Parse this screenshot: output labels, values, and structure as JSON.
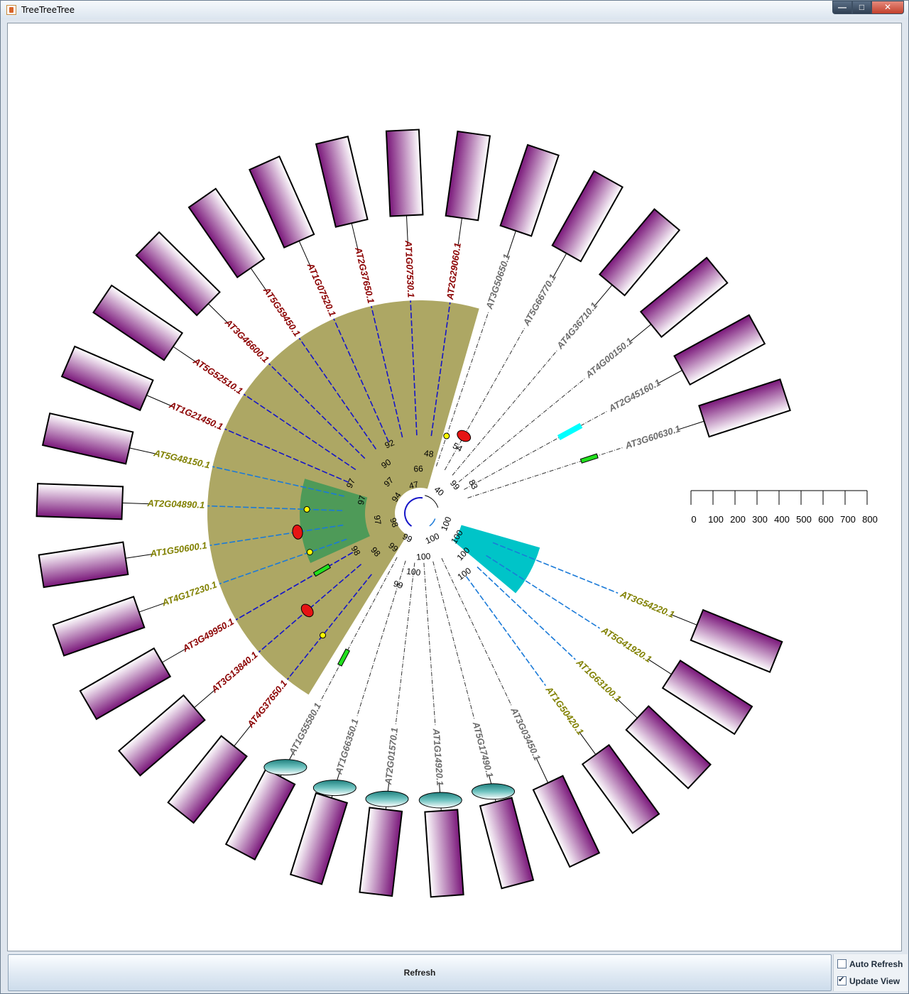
{
  "window": {
    "title": "TreeTreeTree"
  },
  "tree": {
    "leaves": [
      {
        "label": "AT3G54220.1",
        "color": "#808000",
        "edge": "dashed-blue"
      },
      {
        "label": "AT5G41920.1",
        "color": "#808000",
        "edge": "dashed-blue"
      },
      {
        "label": "AT1G63100.1",
        "color": "#808000",
        "edge": "dashed-blue"
      },
      {
        "label": "AT1G50420.1",
        "color": "#808000",
        "edge": "dashed-blue"
      },
      {
        "label": "AT3G03450.1",
        "color": "#6b6b6b",
        "edge": "dashdot"
      },
      {
        "label": "AT5G17490.1",
        "color": "#6b6b6b",
        "edge": "dashdot"
      },
      {
        "label": "AT1G14920.1",
        "color": "#6b6b6b",
        "edge": "dashdot"
      },
      {
        "label": "AT2G01570.1",
        "color": "#6b6b6b",
        "edge": "dashdot"
      },
      {
        "label": "AT1G66350.1",
        "color": "#6b6b6b",
        "edge": "dashdot"
      },
      {
        "label": "AT1G55580.1",
        "color": "#6b6b6b",
        "edge": "dashdot"
      },
      {
        "label": "AT4G37650.1",
        "color": "#8b0000",
        "edge": "dashed-navy"
      },
      {
        "label": "AT3G13840.1",
        "color": "#8b0000",
        "edge": "dashed-navy"
      },
      {
        "label": "AT3G49950.1",
        "color": "#8b0000",
        "edge": "dashed-navy"
      },
      {
        "label": "AT4G17230.1",
        "color": "#808000",
        "edge": "dashed-blue"
      },
      {
        "label": "AT1G50600.1",
        "color": "#808000",
        "edge": "dashed-blue"
      },
      {
        "label": "AT2G04890.1",
        "color": "#808000",
        "edge": "dashed-blue"
      },
      {
        "label": "AT5G48150.1",
        "color": "#808000",
        "edge": "dashed-blue"
      },
      {
        "label": "AT1G21450.1",
        "color": "#8b0000",
        "edge": "dashed-navy"
      },
      {
        "label": "AT5G52510.1",
        "color": "#8b0000",
        "edge": "dashed-navy"
      },
      {
        "label": "AT3G46600.1",
        "color": "#8b0000",
        "edge": "dashed-navy"
      },
      {
        "label": "AT5G59450.1",
        "color": "#8b0000",
        "edge": "dashed-navy"
      },
      {
        "label": "AT1G07520.1",
        "color": "#8b0000",
        "edge": "dashed-navy"
      },
      {
        "label": "AT2G37650.1",
        "color": "#8b0000",
        "edge": "dashed-navy"
      },
      {
        "label": "AT1G07530.1",
        "color": "#8b0000",
        "edge": "dashed-navy"
      },
      {
        "label": "AT2G29060.1",
        "color": "#8b0000",
        "edge": "dashed-navy"
      },
      {
        "label": "AT3G50650.1",
        "color": "#6b6b6b",
        "edge": "dashdot"
      },
      {
        "label": "AT5G66770.1",
        "color": "#6b6b6b",
        "edge": "dashdot"
      },
      {
        "label": "AT4G36710.1",
        "color": "#6b6b6b",
        "edge": "dashdot"
      },
      {
        "label": "AT4G00150.1",
        "color": "#6b6b6b",
        "edge": "dashdot"
      },
      {
        "label": "AT2G45160.1",
        "color": "#6b6b6b",
        "edge": "dashdot"
      },
      {
        "label": "AT3G60630.1",
        "color": "#6b6b6b",
        "edge": "dashdot"
      }
    ],
    "bootstrap_labels": [
      "100",
      "100",
      "100",
      "100",
      "100",
      "100",
      "100",
      "99",
      "99",
      "99",
      "98",
      "98",
      "98",
      "97",
      "97",
      "97",
      "94",
      "97",
      "90",
      "92",
      "47",
      "66",
      "48",
      "54",
      "40",
      "99",
      "83"
    ],
    "scale": {
      "ticks": [
        "0",
        "100",
        "200",
        "300",
        "400",
        "500",
        "600",
        "700",
        "800"
      ]
    },
    "colors": {
      "clade_fill": "#ada764",
      "subclade_fill": "#4e9a58",
      "cyan_clade_fill": "#00c4c8",
      "bar_top": "#7a177a",
      "bar_bottom": "#ffffff",
      "ellipse_fill": "#2e9b99",
      "red_marker": "#e61414",
      "green_marker": "#22e01e",
      "yellow_marker": "#ffff00",
      "cyan_marker": "#00ffff",
      "branch_blue": "#1515c8"
    }
  },
  "toolbar": {
    "refresh_label": "Refresh",
    "auto_refresh_label": "Auto Refresh",
    "auto_refresh_checked": false,
    "update_view_label": "Update View",
    "update_view_checked": true
  }
}
